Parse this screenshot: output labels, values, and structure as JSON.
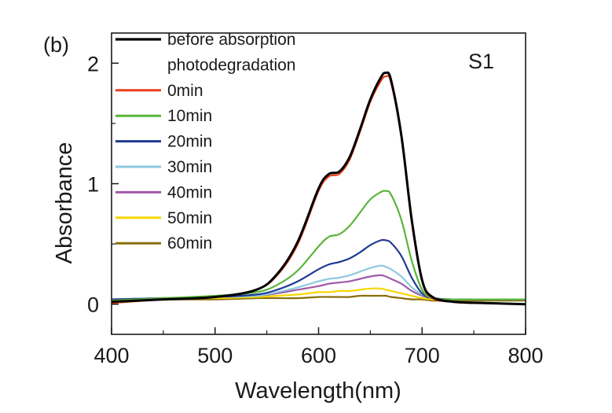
{
  "chart_data": {
    "type": "line",
    "panel_label": "(b)",
    "sample_label": "S1",
    "xlabel": "Wavelength(nm)",
    "ylabel": "Absorbance",
    "xlim": [
      400,
      800
    ],
    "ylim": [
      -0.25,
      2.25
    ],
    "xticks": [
      400,
      500,
      600,
      700,
      800
    ],
    "yticks": [
      0,
      1,
      2
    ],
    "legend_placement": "top-left",
    "legend_header": [
      "before absorption",
      "photodegradation"
    ],
    "x": [
      400,
      450,
      500,
      540,
      560,
      580,
      600,
      610,
      620,
      630,
      640,
      650,
      660,
      665,
      670,
      680,
      690,
      700,
      710,
      730,
      760,
      800
    ],
    "series": [
      {
        "name": "before absorption",
        "color": "#000000",
        "values": [
          0.02,
          0.04,
          0.06,
          0.12,
          0.25,
          0.52,
          0.96,
          1.08,
          1.1,
          1.22,
          1.45,
          1.7,
          1.88,
          1.92,
          1.86,
          1.4,
          0.7,
          0.2,
          0.06,
          0.02,
          0.01,
          0.0
        ]
      },
      {
        "name": "0min",
        "color": "#e8401c",
        "values": [
          0.01,
          0.04,
          0.06,
          0.12,
          0.24,
          0.5,
          0.94,
          1.06,
          1.08,
          1.2,
          1.43,
          1.68,
          1.85,
          1.89,
          1.84,
          1.38,
          0.68,
          0.19,
          0.05,
          0.02,
          0.01,
          0.0
        ]
      },
      {
        "name": "10min",
        "color": "#5ab53a",
        "values": [
          0.03,
          0.05,
          0.07,
          0.1,
          0.16,
          0.28,
          0.48,
          0.56,
          0.58,
          0.65,
          0.76,
          0.87,
          0.93,
          0.94,
          0.91,
          0.7,
          0.36,
          0.12,
          0.05,
          0.04,
          0.04,
          0.04
        ]
      },
      {
        "name": "20min",
        "color": "#1f3a93",
        "values": [
          0.04,
          0.05,
          0.06,
          0.08,
          0.12,
          0.19,
          0.29,
          0.33,
          0.35,
          0.38,
          0.43,
          0.49,
          0.53,
          0.53,
          0.51,
          0.4,
          0.22,
          0.09,
          0.05,
          0.04,
          0.04,
          0.04
        ]
      },
      {
        "name": "30min",
        "color": "#8ec9e0",
        "values": [
          0.04,
          0.05,
          0.06,
          0.07,
          0.1,
          0.14,
          0.19,
          0.21,
          0.22,
          0.24,
          0.27,
          0.3,
          0.32,
          0.31,
          0.29,
          0.23,
          0.14,
          0.08,
          0.05,
          0.04,
          0.04,
          0.04
        ]
      },
      {
        "name": "40min",
        "color": "#a05aa8",
        "values": [
          0.04,
          0.05,
          0.06,
          0.07,
          0.09,
          0.12,
          0.15,
          0.17,
          0.18,
          0.19,
          0.21,
          0.23,
          0.24,
          0.23,
          0.21,
          0.17,
          0.11,
          0.07,
          0.05,
          0.04,
          0.04,
          0.04
        ]
      },
      {
        "name": "50min",
        "color": "#f5d800",
        "values": [
          0.04,
          0.05,
          0.05,
          0.06,
          0.07,
          0.08,
          0.1,
          0.1,
          0.11,
          0.11,
          0.12,
          0.13,
          0.13,
          0.12,
          0.11,
          0.09,
          0.07,
          0.05,
          0.04,
          0.04,
          0.04,
          0.04
        ]
      },
      {
        "name": "60min",
        "color": "#8a6d0b",
        "values": [
          0.04,
          0.04,
          0.04,
          0.05,
          0.05,
          0.05,
          0.06,
          0.06,
          0.06,
          0.06,
          0.07,
          0.07,
          0.07,
          0.07,
          0.06,
          0.05,
          0.04,
          0.04,
          0.03,
          0.03,
          0.03,
          0.03
        ]
      }
    ]
  }
}
